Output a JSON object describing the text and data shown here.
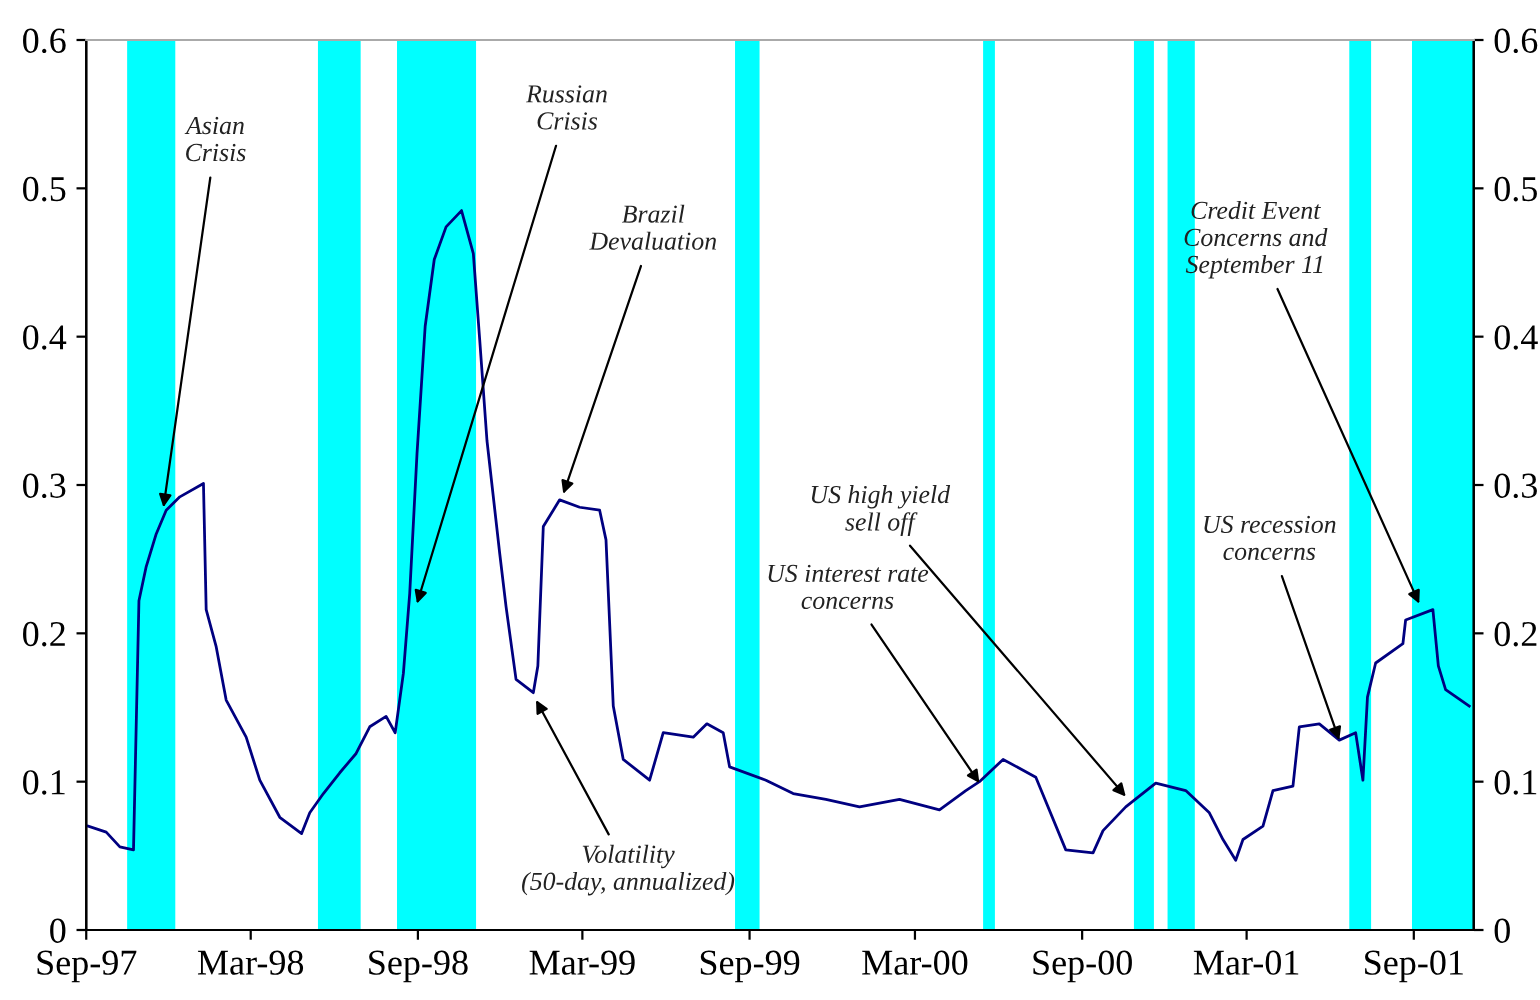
{
  "chart_data": {
    "type": "line",
    "x": [
      "1997-09-03",
      "1997-09-23",
      "1997-10-08",
      "1997-10-23",
      "1997-10-29",
      "1997-11-06",
      "1997-11-17",
      "1997-11-28",
      "1997-12-13",
      "1998-01-08",
      "1998-01-11",
      "1998-01-22",
      "1998-02-02",
      "1998-02-24",
      "1998-03-11",
      "1998-04-02",
      "1998-04-26",
      "1998-05-05",
      "1998-05-20",
      "1998-06-07",
      "1998-06-25",
      "1998-07-10",
      "1998-07-28",
      "1998-08-07",
      "1998-08-16",
      "1998-08-23",
      "1998-08-31",
      "1998-09-09",
      "1998-09-19",
      "1998-10-02",
      "1998-10-19",
      "1998-11-01",
      "1998-11-08",
      "1998-11-16",
      "1998-11-30",
      "1998-12-07",
      "1998-12-18",
      "1999-01-06",
      "1999-01-11",
      "1999-01-17",
      "1999-02-04",
      "1999-02-26",
      "1999-03-20",
      "1999-03-27",
      "1999-04-04",
      "1999-04-15",
      "1999-05-14",
      "1999-05-29",
      "1999-07-01",
      "1999-07-16",
      "1999-08-03",
      "1999-08-10",
      "1999-09-19",
      "1999-10-19",
      "1999-11-24",
      "1999-12-31",
      "2000-02-13",
      "2000-03-28",
      "2000-04-26",
      "2000-05-11",
      "2000-06-06",
      "2000-07-12",
      "2000-08-14",
      "2000-09-13",
      "2000-09-24",
      "2000-10-19",
      "2000-11-21",
      "2000-12-24",
      "2001-01-19",
      "2001-02-03",
      "2001-02-17",
      "2001-02-25",
      "2001-03-19",
      "2001-03-30",
      "2001-04-21",
      "2001-04-28",
      "2001-05-20",
      "2001-06-11",
      "2001-06-29",
      "2001-07-07",
      "2001-07-12",
      "2001-07-21",
      "2001-08-20",
      "2001-08-23",
      "2001-09-22",
      "2001-09-28",
      "2001-10-06",
      "2001-11-01"
    ],
    "series": [
      {
        "color": "#000080",
        "values": [
          0.07,
          0.066,
          0.056,
          0.054,
          0.222,
          0.245,
          0.267,
          0.283,
          0.292,
          0.301,
          0.216,
          0.191,
          0.155,
          0.13,
          0.101,
          0.076,
          0.065,
          0.079,
          0.092,
          0.106,
          0.119,
          0.137,
          0.144,
          0.133,
          0.173,
          0.227,
          0.321,
          0.407,
          0.452,
          0.474,
          0.485,
          0.456,
          0.398,
          0.33,
          0.254,
          0.218,
          0.169,
          0.16,
          0.178,
          0.272,
          0.29,
          0.285,
          0.283,
          0.263,
          0.151,
          0.115,
          0.101,
          0.133,
          0.13,
          0.139,
          0.133,
          0.11,
          0.101,
          0.092,
          0.088,
          0.083,
          0.088,
          0.081,
          0.094,
          0.1,
          0.115,
          0.103,
          0.054,
          0.052,
          0.067,
          0.083,
          0.099,
          0.094,
          0.079,
          0.061,
          0.047,
          0.061,
          0.07,
          0.094,
          0.097,
          0.137,
          0.139,
          0.128,
          0.133,
          0.101,
          0.157,
          0.18,
          0.193,
          0.209,
          0.216,
          0.178,
          0.162,
          0.151
        ]
      }
    ],
    "xlim": [
      "1997-09-01",
      "2001-11-06"
    ],
    "xticks": [
      {
        "value": "1997-09-01",
        "label": "Sep-97"
      },
      {
        "value": "1998-03-01",
        "label": "Mar-98"
      },
      {
        "value": "1998-09-01",
        "label": "Sep-98"
      },
      {
        "value": "1999-03-01",
        "label": "Mar-99"
      },
      {
        "value": "1999-09-01",
        "label": "Sep-99"
      },
      {
        "value": "2000-03-01",
        "label": "Mar-00"
      },
      {
        "value": "2000-09-01",
        "label": "Sep-00"
      },
      {
        "value": "2001-03-01",
        "label": "Mar-01"
      },
      {
        "value": "2001-09-01",
        "label": "Sep-01"
      }
    ],
    "ylim": [
      0,
      0.6
    ],
    "yticks": [
      0,
      0.1,
      0.2,
      0.3,
      0.4,
      0.5,
      0.6
    ],
    "y2lim": [
      0,
      0.6
    ],
    "y2ticks": [
      0,
      0.1,
      0.2,
      0.3,
      0.4,
      0.5,
      0.6
    ],
    "bands": [
      {
        "axis": "x",
        "from": "1997-10-16",
        "to": "1997-12-08",
        "color": "#00ffff"
      },
      {
        "axis": "x",
        "from": "1998-05-14",
        "to": "1998-06-30",
        "color": "#00ffff"
      },
      {
        "axis": "x",
        "from": "1998-08-09",
        "to": "1998-11-04",
        "color": "#00ffff"
      },
      {
        "axis": "x",
        "from": "1999-08-16",
        "to": "1999-09-12",
        "color": "#00ffff"
      },
      {
        "axis": "x",
        "from": "2000-05-15",
        "to": "2000-05-28",
        "color": "#00ffff"
      },
      {
        "axis": "x",
        "from": "2000-10-28",
        "to": "2000-11-19",
        "color": "#00ffff"
      },
      {
        "axis": "x",
        "from": "2000-12-04",
        "to": "2001-01-03",
        "color": "#00ffff"
      },
      {
        "axis": "x",
        "from": "2001-06-22",
        "to": "2001-07-16",
        "color": "#00ffff"
      },
      {
        "axis": "x",
        "from": "2001-08-30",
        "to": "2001-11-06",
        "color": "#00ffff"
      }
    ],
    "annotations": [
      {
        "text": "Asian\nCrisis",
        "x": "1997-11-25",
        "y": 0.285
      },
      {
        "text": "Russian\nCrisis",
        "x": "1998-08-31",
        "y": 0.22
      },
      {
        "text": "Brazil\nDevaluation",
        "x": "1999-02-08",
        "y": 0.294
      },
      {
        "text": "Volatility\n(50-day, annualized)",
        "x": "1999-01-09",
        "y": 0.155
      },
      {
        "text": "US interest rate\nconcerns",
        "x": "2000-05-11",
        "y": 0.099
      },
      {
        "text": "US high yield\nsell off",
        "x": "2000-10-19",
        "y": 0.09
      },
      {
        "text": "US recession\nconcerns",
        "x": "2001-06-11",
        "y": 0.128
      },
      {
        "text": "Credit Event\nConcerns and\nSeptember 11",
        "x": "2001-09-07",
        "y": 0.22
      }
    ],
    "grid": false,
    "marker": "none",
    "line_style": "solid"
  }
}
